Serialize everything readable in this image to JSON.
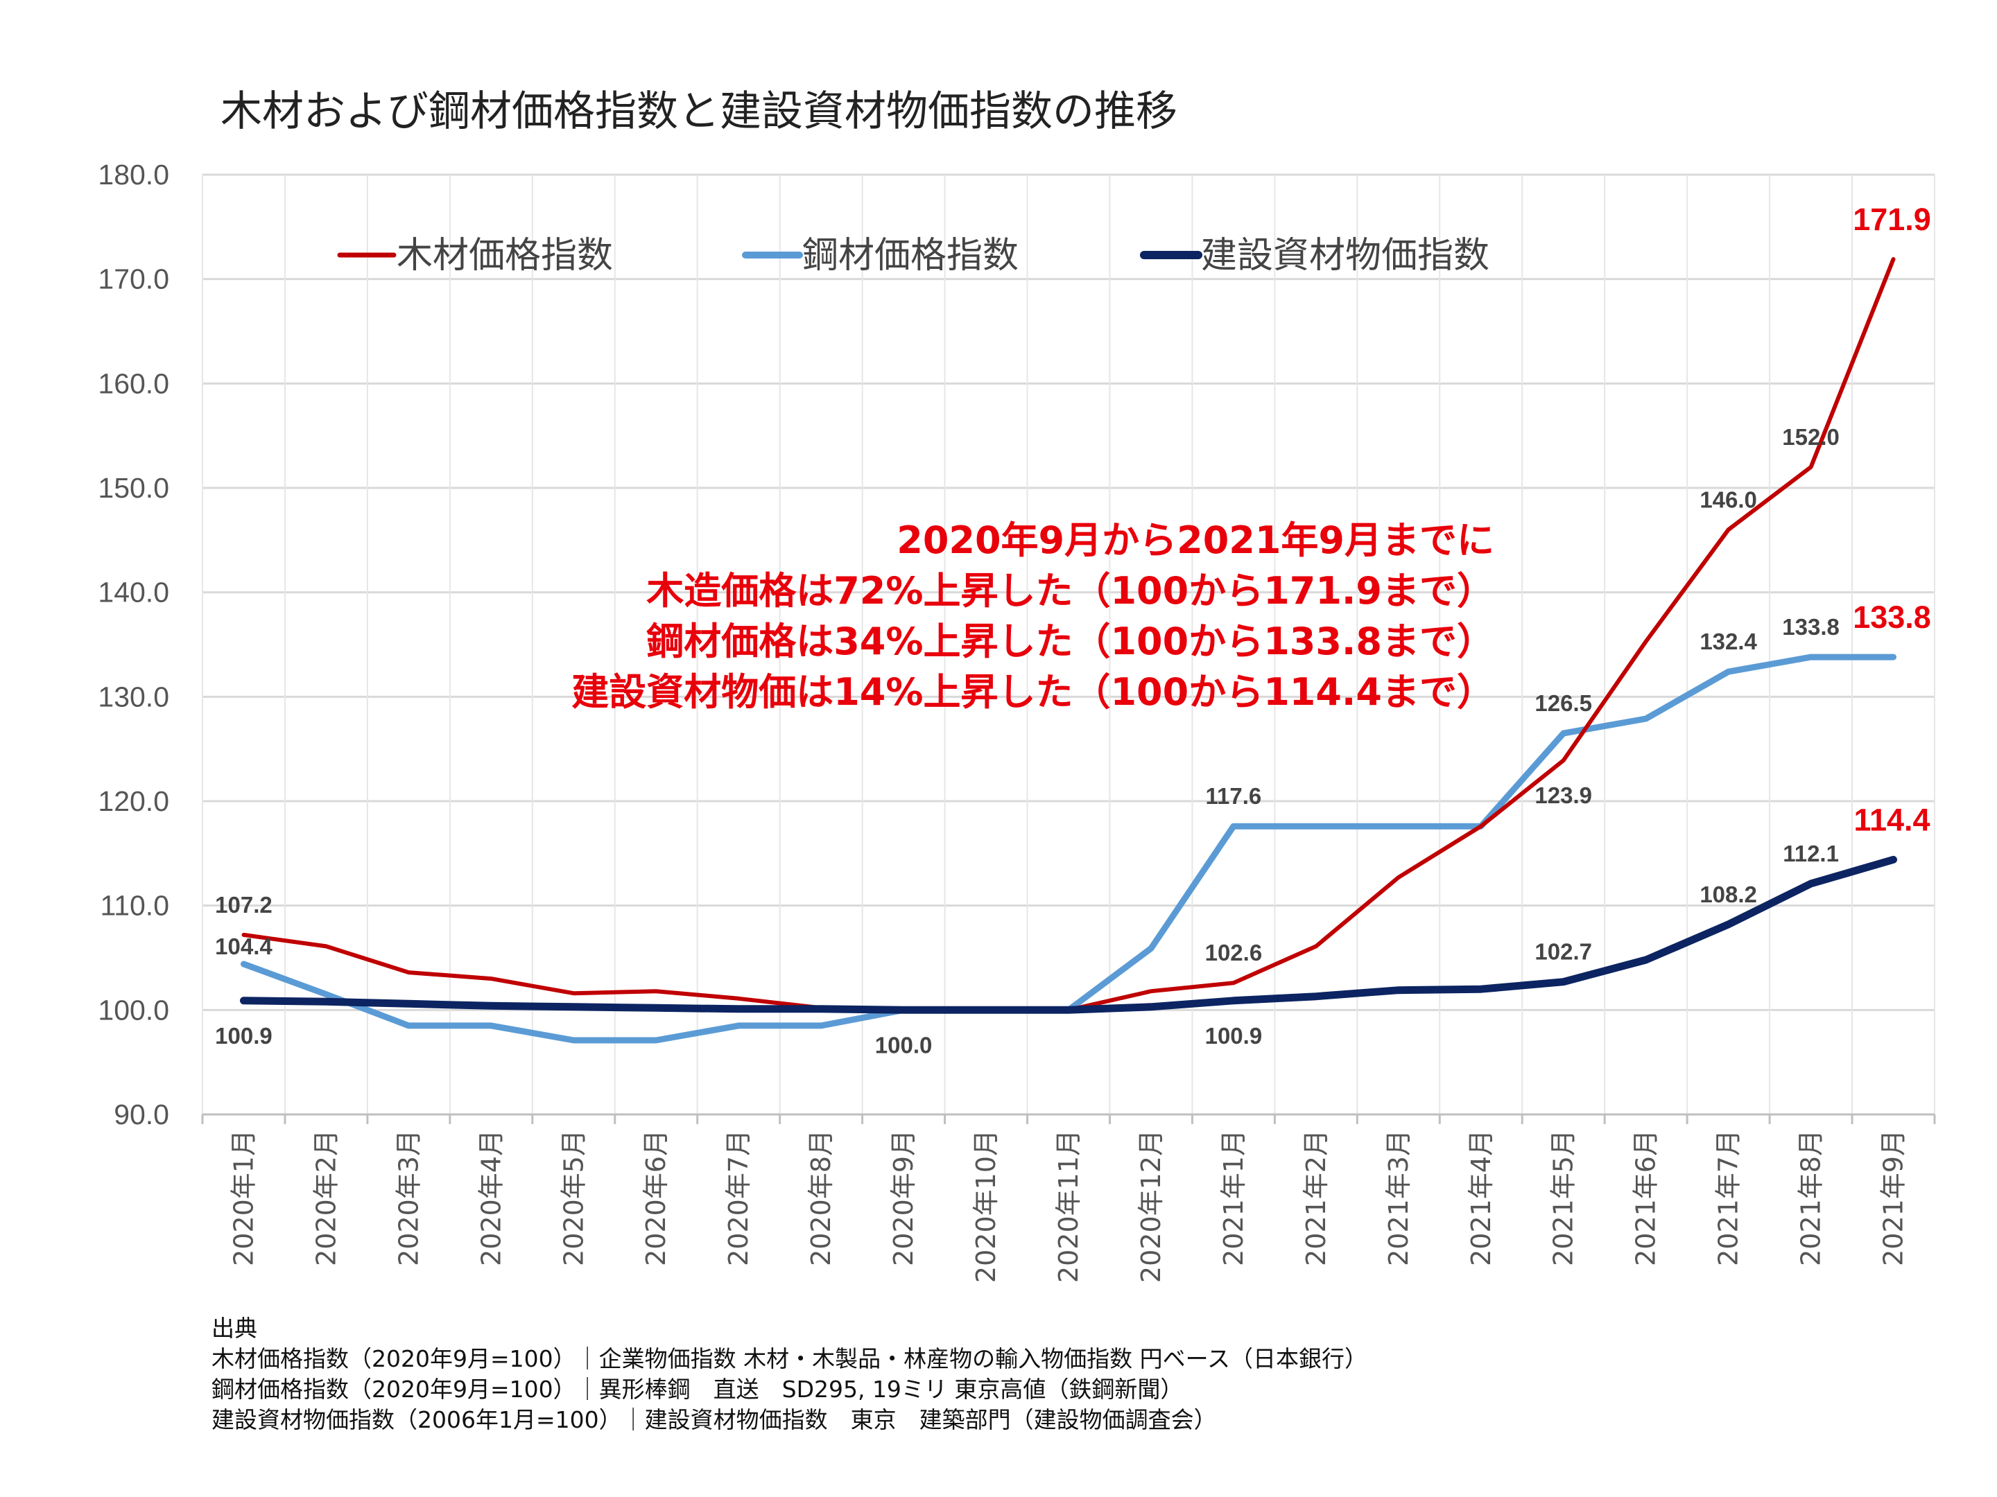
{
  "chart_data": {
    "type": "line",
    "title": "木材および鋼材価格指数と建設資材物価指数の推移",
    "categories": [
      "2020年1月",
      "2020年2月",
      "2020年3月",
      "2020年4月",
      "2020年5月",
      "2020年6月",
      "2020年7月",
      "2020年8月",
      "2020年9月",
      "2020年10月",
      "2020年11月",
      "2020年12月",
      "2021年1月",
      "2021年2月",
      "2021年3月",
      "2021年4月",
      "2021年5月",
      "2021年6月",
      "2021年7月",
      "2021年8月",
      "2021年9月"
    ],
    "ylim": [
      90,
      180
    ],
    "ytick_step": 10,
    "grid": true,
    "legend_position": "top",
    "series": [
      {
        "name": "木材価格指数",
        "color": "#c00000",
        "values": [
          107.2,
          106.1,
          103.6,
          103.0,
          101.6,
          101.8,
          101.1,
          100.2,
          100.0,
          100.0,
          100.0,
          101.8,
          102.6,
          106.1,
          112.7,
          117.6,
          123.9,
          135.3,
          146.0,
          152.0,
          171.9
        ]
      },
      {
        "name": "鋼材価格指数",
        "color": "#5b9bd5",
        "values": [
          104.4,
          101.5,
          98.5,
          98.5,
          97.1,
          97.1,
          98.5,
          98.5,
          100.0,
          100.0,
          100.0,
          105.9,
          117.6,
          117.6,
          117.6,
          117.6,
          126.5,
          127.9,
          132.4,
          133.8,
          133.8
        ]
      },
      {
        "name": "建設資材物価指数",
        "color": "#0c2461",
        "values": [
          100.9,
          100.8,
          100.6,
          100.4,
          100.3,
          100.2,
          100.1,
          100.1,
          100.0,
          100.0,
          100.0,
          100.3,
          100.9,
          101.3,
          101.9,
          102.0,
          102.7,
          104.8,
          108.2,
          112.1,
          114.4
        ]
      }
    ],
    "data_labels": [
      {
        "series": 0,
        "index": 0,
        "text": "107.2",
        "pos": "above"
      },
      {
        "series": 0,
        "index": 12,
        "text": "102.6",
        "pos": "above"
      },
      {
        "series": 0,
        "index": 16,
        "text": "123.9",
        "pos": "below"
      },
      {
        "series": 0,
        "index": 18,
        "text": "146.0",
        "pos": "above"
      },
      {
        "series": 0,
        "index": 19,
        "text": "152.0",
        "pos": "above"
      },
      {
        "series": 1,
        "index": 0,
        "text": "104.4",
        "pos": "left"
      },
      {
        "series": 1,
        "index": 8,
        "text": "100.0",
        "pos": "below"
      },
      {
        "series": 1,
        "index": 12,
        "text": "117.6",
        "pos": "above"
      },
      {
        "series": 1,
        "index": 16,
        "text": "126.5",
        "pos": "above"
      },
      {
        "series": 1,
        "index": 18,
        "text": "132.4",
        "pos": "above"
      },
      {
        "series": 1,
        "index": 19,
        "text": "133.8",
        "pos": "above"
      },
      {
        "series": 2,
        "index": 0,
        "text": "100.9",
        "pos": "below"
      },
      {
        "series": 2,
        "index": 12,
        "text": "100.9",
        "pos": "below"
      },
      {
        "series": 2,
        "index": 16,
        "text": "102.7",
        "pos": "above"
      },
      {
        "series": 2,
        "index": 18,
        "text": "108.2",
        "pos": "above"
      },
      {
        "series": 2,
        "index": 19,
        "text": "112.1",
        "pos": "above"
      }
    ],
    "end_labels": [
      {
        "series": 0,
        "text": "171.9"
      },
      {
        "series": 1,
        "text": "133.8"
      },
      {
        "series": 2,
        "text": "114.4"
      }
    ],
    "end_label_color": "#e8000b"
  },
  "annotation": {
    "lines": [
      "2020年9月から2021年9月までに",
      "木造価格は72%上昇した（100から171.9まで）",
      "鋼材価格は34%上昇した（100から133.8まで）",
      "建設資材物価は14%上昇した（100から114.4まで）"
    ]
  },
  "source": {
    "lines": [
      "出典",
      "木材価格指数（2020年9月=100）｜企業物価指数 木材・木製品・林産物の輸入物価指数 円ベース（日本銀行）",
      "鋼材価格指数（2020年9月=100）｜異形棒鋼　直送　SD295, 19ミリ 東京高値（鉄鋼新聞）",
      "建設資材物価指数（2006年1月=100）｜建設資材物価指数　東京　建築部門（建設物価調査会）"
    ]
  }
}
